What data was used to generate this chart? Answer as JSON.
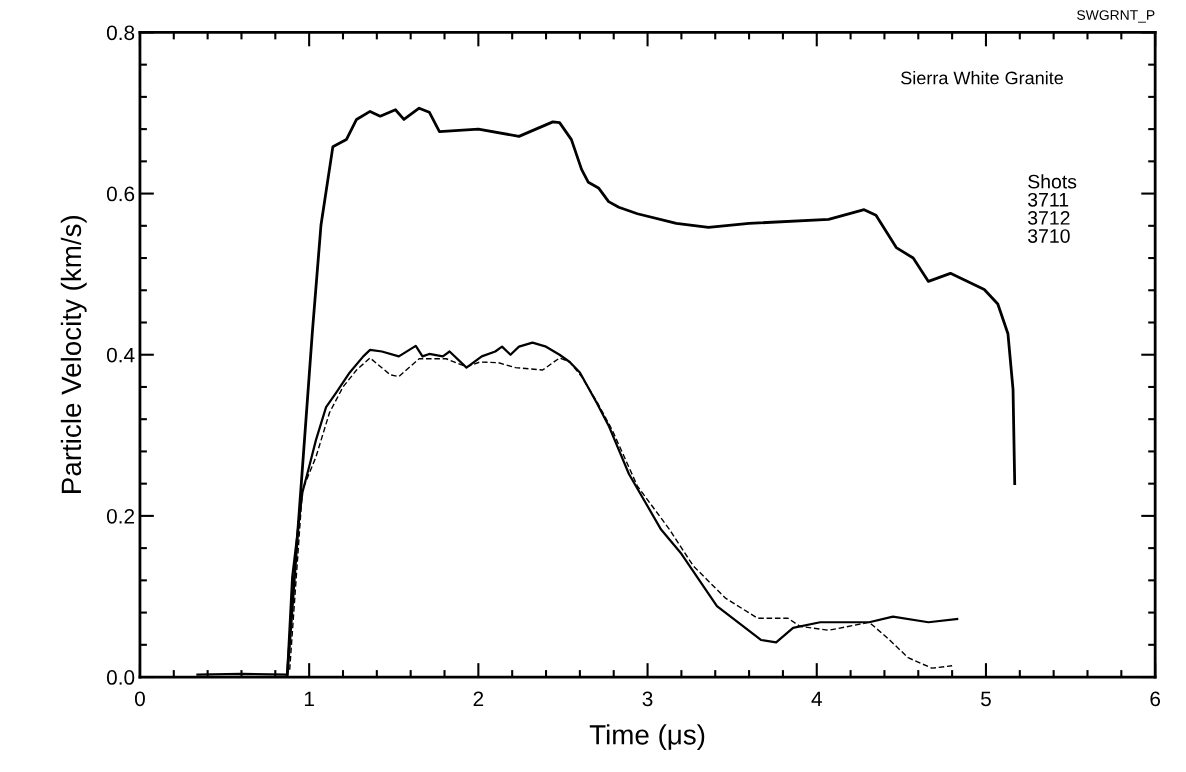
{
  "chart_data": {
    "type": "line",
    "xlabel": "Time (μs)",
    "ylabel": "Particle Velocity (km/s)",
    "xlim": [
      0,
      6
    ],
    "ylim": [
      0,
      0.8
    ],
    "xticks": [
      0,
      1,
      2,
      3,
      4,
      5,
      6
    ],
    "yticks": [
      {
        "value": 0,
        "label": "0.0"
      },
      {
        "value": 0.2,
        "label": "0.2"
      },
      {
        "value": 0.4,
        "label": "0.4"
      },
      {
        "value": 0.6,
        "label": "0.6"
      },
      {
        "value": 0.8,
        "label": "0.8"
      }
    ],
    "grid": false,
    "annotations": [
      "SWGRNT_P",
      "Sierra White Granite",
      "Shots\n3711\n3712\n3710"
    ],
    "series": [
      {
        "color": "#000000",
        "line_style": "solid",
        "x": [
          0.87,
          1.02,
          1.07,
          1.14,
          1.22,
          1.28,
          1.36,
          1.42,
          1.51,
          1.56,
          1.65,
          1.71,
          1.77,
          2.0,
          2.24,
          2.44,
          2.48,
          2.55,
          2.61,
          2.65,
          2.71,
          2.77,
          2.83,
          2.94,
          3.17,
          3.36,
          3.6,
          4.07,
          4.28,
          4.35,
          4.47,
          4.57,
          4.66,
          4.79,
          4.99,
          5.07,
          5.13,
          5.16,
          5.17
        ],
        "values": [
          0,
          0.431,
          0.561,
          0.658,
          0.667,
          0.692,
          0.702,
          0.696,
          0.704,
          0.692,
          0.706,
          0.701,
          0.677,
          0.68,
          0.671,
          0.689,
          0.688,
          0.667,
          0.63,
          0.614,
          0.607,
          0.59,
          0.583,
          0.575,
          0.563,
          0.558,
          0.563,
          0.568,
          0.58,
          0.573,
          0.533,
          0.52,
          0.491,
          0.501,
          0.481,
          0.463,
          0.426,
          0.357,
          0.24
        ]
      },
      {
        "color": "#000000",
        "line_style": "solid",
        "x": [
          0.34,
          0.6,
          0.87,
          0.9,
          0.96,
          1.0,
          1.04,
          1.1,
          1.16,
          1.24,
          1.32,
          1.36,
          1.43,
          1.53,
          1.63,
          1.67,
          1.71,
          1.79,
          1.83,
          1.93,
          2.02,
          2.1,
          2.14,
          2.19,
          2.24,
          2.32,
          2.4,
          2.48,
          2.54,
          2.6,
          2.7,
          2.77,
          2.89,
          3.08,
          3.2,
          3.41,
          3.67,
          3.76,
          3.86,
          4.02,
          4.12,
          4.31,
          4.45,
          4.66,
          4.83
        ],
        "values": [
          0.003,
          0.004,
          0.003,
          0.124,
          0.229,
          0.261,
          0.294,
          0.335,
          0.353,
          0.378,
          0.398,
          0.406,
          0.404,
          0.398,
          0.411,
          0.398,
          0.401,
          0.398,
          0.404,
          0.384,
          0.398,
          0.404,
          0.41,
          0.4,
          0.41,
          0.415,
          0.41,
          0.4,
          0.391,
          0.378,
          0.34,
          0.312,
          0.252,
          0.183,
          0.153,
          0.088,
          0.046,
          0.043,
          0.061,
          0.068,
          0.068,
          0.068,
          0.075,
          0.068,
          0.072
        ]
      },
      {
        "color": "#000000",
        "line_style": "dashed",
        "x": [
          0.885,
          0.93,
          0.96,
          1.04,
          1.12,
          1.2,
          1.28,
          1.36,
          1.48,
          1.53,
          1.65,
          1.81,
          1.93,
          2.01,
          2.12,
          2.22,
          2.38,
          2.48,
          2.54,
          2.61,
          2.7,
          2.79,
          2.94,
          3.13,
          3.27,
          3.46,
          3.65,
          3.83,
          3.9,
          4.07,
          4.31,
          4.42,
          4.54,
          4.68,
          4.8
        ],
        "values": [
          0.009,
          0.142,
          0.232,
          0.273,
          0.328,
          0.36,
          0.381,
          0.396,
          0.375,
          0.373,
          0.395,
          0.395,
          0.385,
          0.391,
          0.39,
          0.384,
          0.381,
          0.396,
          0.391,
          0.373,
          0.342,
          0.307,
          0.237,
          0.183,
          0.138,
          0.098,
          0.073,
          0.073,
          0.063,
          0.058,
          0.068,
          0.048,
          0.024,
          0.011,
          0.014
        ]
      }
    ]
  }
}
